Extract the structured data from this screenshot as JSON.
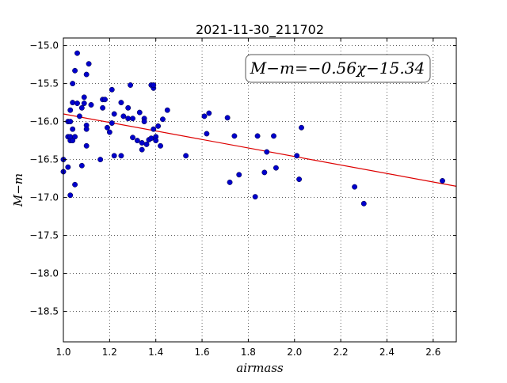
{
  "chart_data": {
    "type": "scatter",
    "title": "2021-11-30_211702",
    "xlabel": "airmass",
    "ylabel": "M−m",
    "annotation": "M−m=−0.56χ−15.34",
    "xlim": [
      1.0,
      2.7
    ],
    "ylim": [
      -18.9,
      -14.9
    ],
    "y_inverted": true,
    "grid": true,
    "x_ticks": [
      "1.0",
      "1.2",
      "1.4",
      "1.6",
      "1.8",
      "2.0",
      "2.2",
      "2.4",
      "2.6"
    ],
    "y_ticks": [
      "−15.0",
      "−15.5",
      "−16.0",
      "−16.5",
      "−17.0",
      "−17.5",
      "−18.0",
      "−18.5"
    ],
    "colors": {
      "points": "#0000cc",
      "fit_line": "#dd0000"
    },
    "fit": {
      "slope": -0.56,
      "intercept": -15.34,
      "x_range": [
        1.0,
        2.7
      ]
    },
    "series": [
      {
        "x": [
          1.0,
          1.0,
          1.02,
          1.02,
          1.02,
          1.03,
          1.03,
          1.03,
          1.03,
          1.03,
          1.04,
          1.04,
          1.04,
          1.04,
          1.05,
          1.05,
          1.05,
          1.06,
          1.06,
          1.07,
          1.08,
          1.08,
          1.09,
          1.09,
          1.1,
          1.1,
          1.1,
          1.1,
          1.11,
          1.12,
          1.16,
          1.17,
          1.17,
          1.18,
          1.19,
          1.2,
          1.21,
          1.21,
          1.22,
          1.22,
          1.25,
          1.25,
          1.26,
          1.28,
          1.28,
          1.29,
          1.3,
          1.3,
          1.32,
          1.33,
          1.34,
          1.34,
          1.35,
          1.35,
          1.36,
          1.37,
          1.38,
          1.38,
          1.39,
          1.39,
          1.39,
          1.4,
          1.4,
          1.41,
          1.42,
          1.43,
          1.45,
          1.53,
          1.61,
          1.62,
          1.63,
          1.71,
          1.72,
          1.74,
          1.76,
          1.83,
          1.84,
          1.87,
          1.88,
          1.91,
          1.92,
          2.01,
          2.02,
          2.03,
          2.26,
          2.3,
          2.64
        ],
        "y": [
          -16.5,
          -16.66,
          -16.2,
          -16.0,
          -16.6,
          -15.85,
          -16.0,
          -16.25,
          -16.2,
          -16.97,
          -15.75,
          -15.5,
          -16.1,
          -16.25,
          -16.2,
          -15.33,
          -16.83,
          -15.1,
          -15.76,
          -15.93,
          -15.82,
          -16.58,
          -15.68,
          -15.76,
          -15.38,
          -16.05,
          -16.32,
          -16.1,
          -15.24,
          -15.78,
          -16.5,
          -15.82,
          -15.71,
          -15.71,
          -16.08,
          -16.14,
          -15.58,
          -16.02,
          -16.45,
          -15.9,
          -15.75,
          -16.45,
          -15.93,
          -15.82,
          -15.96,
          -15.52,
          -15.96,
          -16.21,
          -16.25,
          -15.88,
          -16.28,
          -16.37,
          -15.96,
          -16.0,
          -16.3,
          -16.24,
          -15.52,
          -16.22,
          -15.56,
          -15.52,
          -16.1,
          -16.2,
          -16.25,
          -16.06,
          -16.32,
          -15.97,
          -15.85,
          -16.45,
          -15.93,
          -16.16,
          -15.89,
          -15.95,
          -16.8,
          -16.19,
          -16.7,
          -16.99,
          -16.19,
          -16.67,
          -16.4,
          -16.19,
          -16.61,
          -16.45,
          -16.76,
          -16.08,
          -16.86,
          -17.08,
          -16.78
        ]
      }
    ]
  }
}
